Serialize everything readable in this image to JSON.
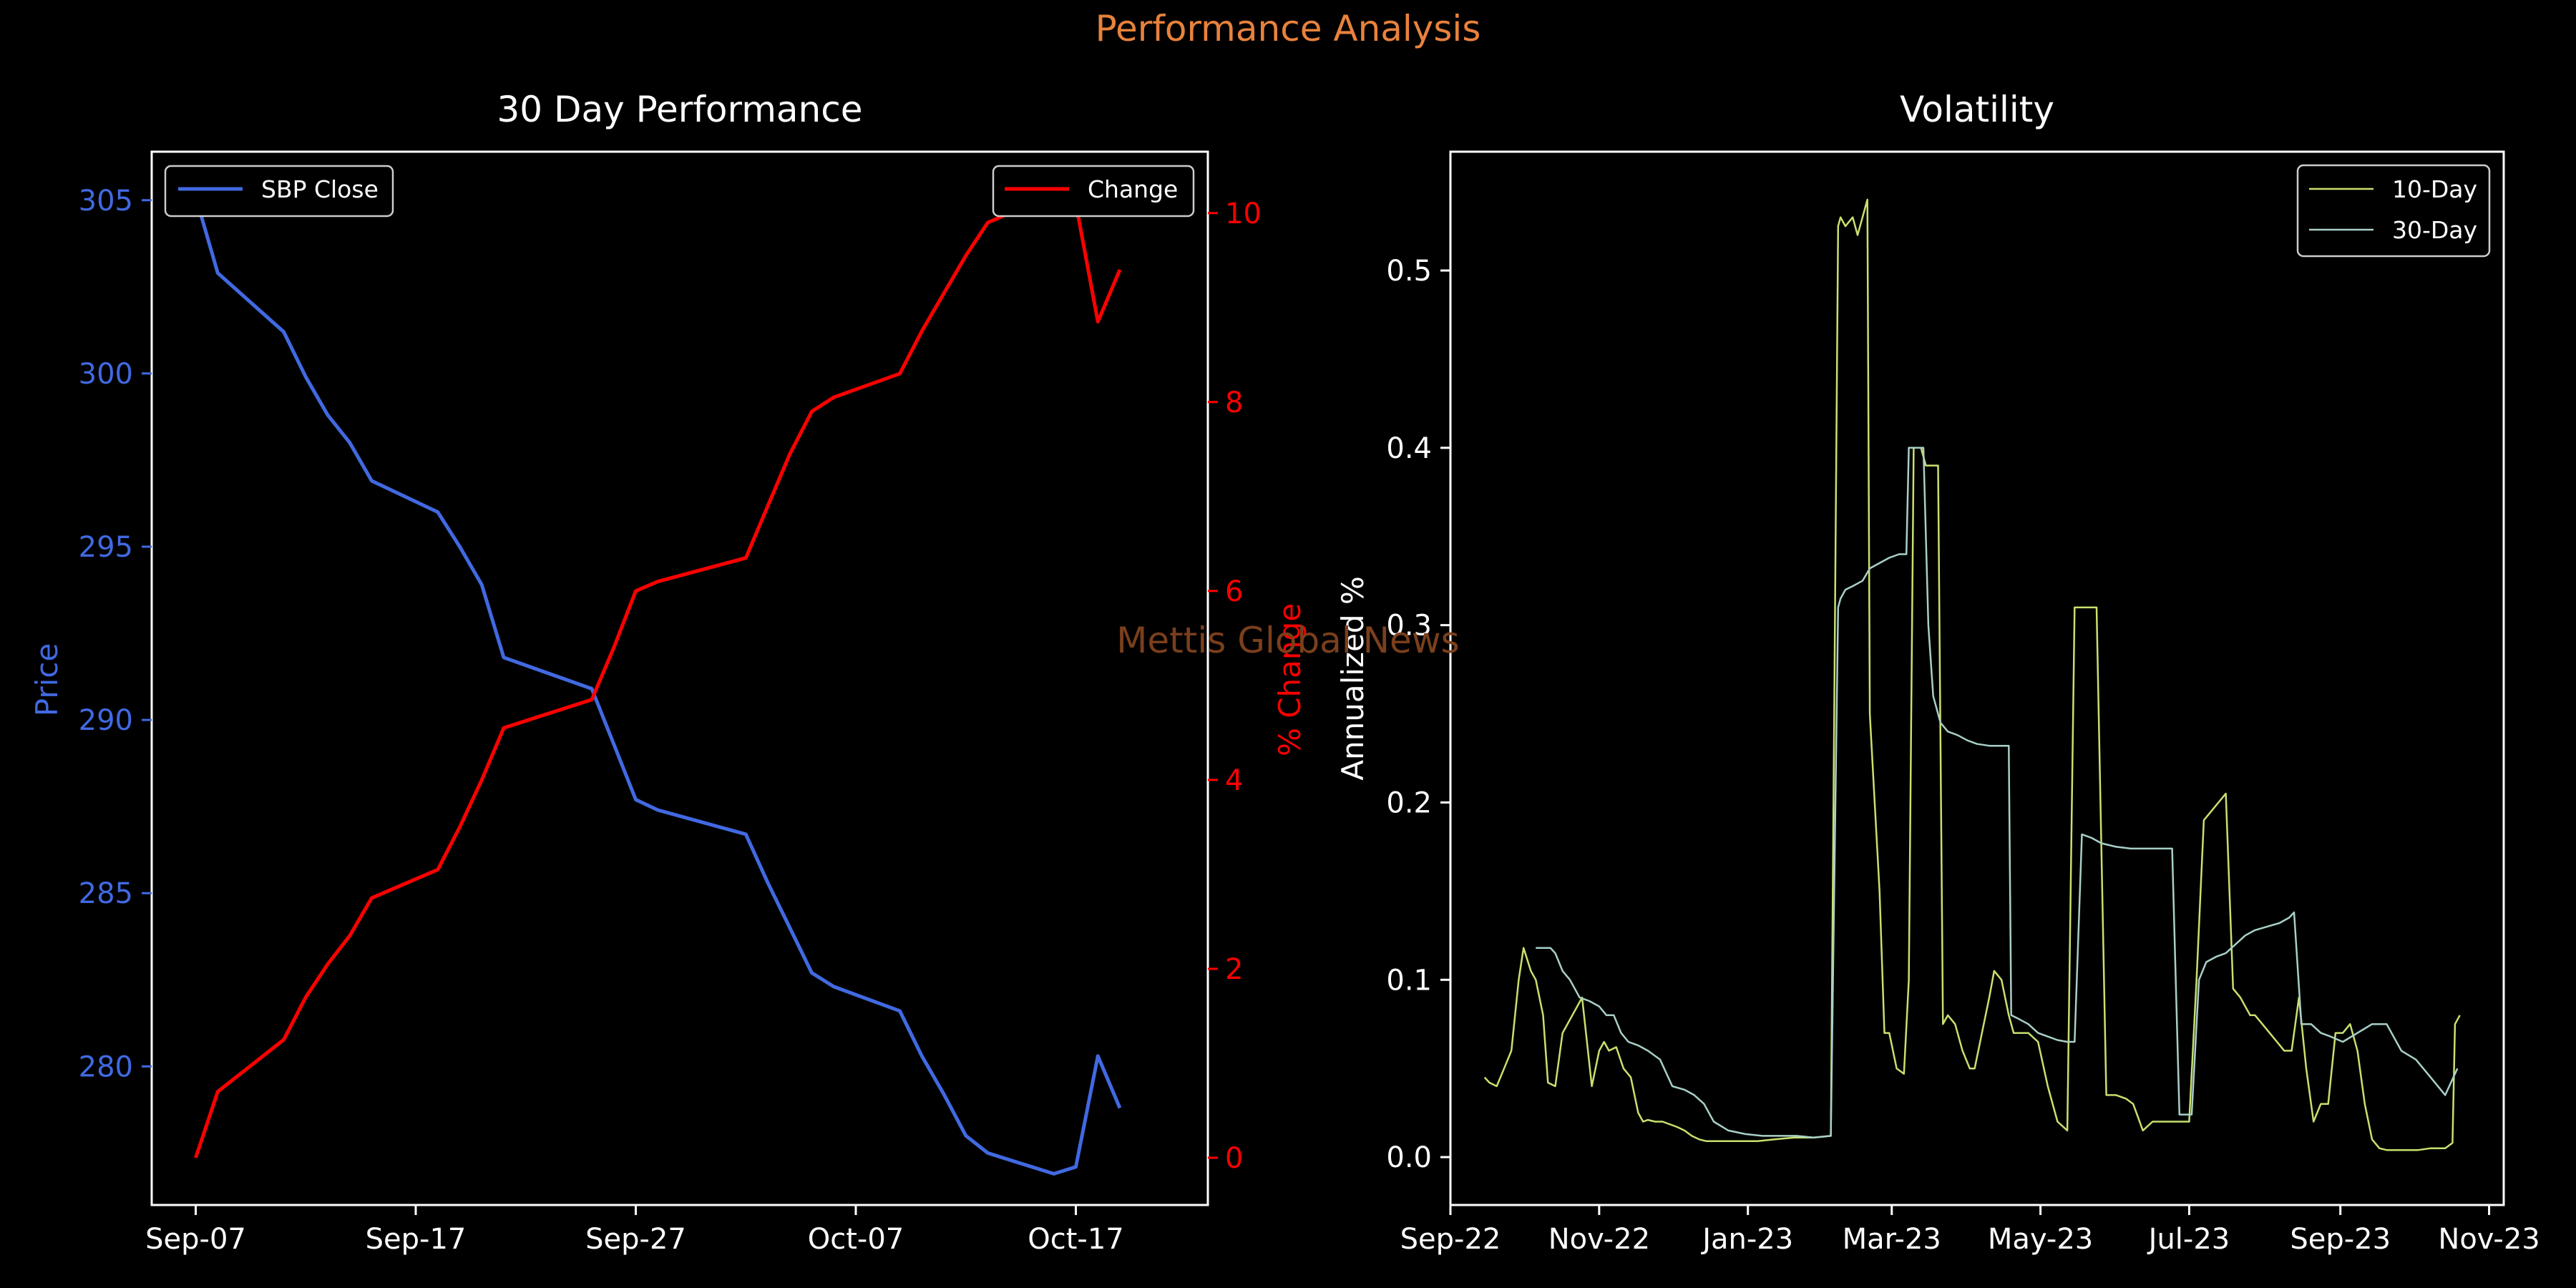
{
  "suptitle": "Performance Analysis",
  "watermark": "Mettis Global News",
  "colors": {
    "background": "#000000",
    "suptitle": "#e8823c",
    "price": "#4169e1",
    "change": "#ff0000",
    "vol10": "#c8e06e",
    "vol30": "#a8cfc8",
    "axes": "#ffffff",
    "watermark": "#7a3f1c"
  },
  "charts": {
    "left": {
      "title": "30 Day Performance",
      "ylabel_left": "Price",
      "ylabel_right": "% Change",
      "x_ticks": [
        "Sep-07",
        "Sep-17",
        "Sep-27",
        "Oct-07",
        "Oct-17"
      ],
      "y_ticks_left": [
        "280",
        "285",
        "290",
        "295",
        "300",
        "305"
      ],
      "y_ticks_right": [
        "0",
        "2",
        "4",
        "6",
        "8",
        "10"
      ],
      "legend_left": "SBP Close",
      "legend_right": "Change"
    },
    "right": {
      "title": "Volatility",
      "ylabel": "Annualized %",
      "x_ticks": [
        "Sep-22",
        "Nov-22",
        "Jan-23",
        "Mar-23",
        "May-23",
        "Jul-23",
        "Sep-23",
        "Nov-23"
      ],
      "y_ticks": [
        "0.0",
        "0.1",
        "0.2",
        "0.3",
        "0.4",
        "0.5"
      ],
      "legend": [
        "10-Day",
        "30-Day"
      ]
    }
  },
  "chart_data": [
    {
      "type": "line",
      "title": "30 Day Performance",
      "xlabel": "",
      "ylabel": "Price",
      "y2label": "% Change",
      "xlim": [
        "2023-09-05",
        "2023-10-23"
      ],
      "ylim": [
        276,
        306.4
      ],
      "y2lim": [
        -0.5,
        10.65
      ],
      "legend": [
        "top-left",
        "top-right"
      ],
      "series": [
        {
          "name": "SBP Close",
          "axis": "left",
          "x": [
            "2023-09-07",
            "2023-09-08",
            "2023-09-11",
            "2023-09-12",
            "2023-09-13",
            "2023-09-14",
            "2023-09-15",
            "2023-09-18",
            "2023-09-19",
            "2023-09-20",
            "2023-09-21",
            "2023-09-25",
            "2023-09-26",
            "2023-09-27",
            "2023-09-28",
            "2023-10-02",
            "2023-10-03",
            "2023-10-04",
            "2023-10-05",
            "2023-10-06",
            "2023-10-09",
            "2023-10-10",
            "2023-10-11",
            "2023-10-12",
            "2023-10-13",
            "2023-10-16",
            "2023-10-17",
            "2023-10-18",
            "2023-10-19"
          ],
          "values": [
            305.1,
            302.9,
            301.2,
            299.9,
            298.8,
            298.0,
            296.9,
            296.0,
            295.0,
            293.9,
            291.8,
            290.9,
            289.3,
            287.7,
            287.4,
            286.7,
            285.3,
            284.0,
            282.7,
            282.3,
            281.6,
            280.3,
            279.2,
            278.0,
            277.5,
            276.9,
            277.1,
            280.3,
            278.8
          ]
        },
        {
          "name": "Change",
          "axis": "right",
          "x": [
            "2023-09-07",
            "2023-09-08",
            "2023-09-11",
            "2023-09-12",
            "2023-09-13",
            "2023-09-14",
            "2023-09-15",
            "2023-09-18",
            "2023-09-19",
            "2023-09-20",
            "2023-09-21",
            "2023-09-25",
            "2023-09-26",
            "2023-09-27",
            "2023-09-28",
            "2023-10-02",
            "2023-10-03",
            "2023-10-04",
            "2023-10-05",
            "2023-10-06",
            "2023-10-09",
            "2023-10-10",
            "2023-10-11",
            "2023-10-12",
            "2023-10-13",
            "2023-10-16",
            "2023-10-17",
            "2023-10-18",
            "2023-10-19"
          ],
          "values": [
            0.0,
            0.7,
            1.25,
            1.7,
            2.05,
            2.35,
            2.75,
            3.05,
            3.5,
            4.0,
            4.55,
            4.85,
            5.4,
            6.0,
            6.1,
            6.35,
            6.9,
            7.45,
            7.9,
            8.05,
            8.3,
            8.75,
            9.15,
            9.55,
            9.9,
            10.2,
            10.1,
            8.85,
            9.4
          ]
        }
      ]
    },
    {
      "type": "line",
      "title": "Volatility",
      "xlabel": "",
      "ylabel": "Annualized %",
      "xlim": [
        "2022-09-01",
        "2023-11-07"
      ],
      "ylim": [
        -0.027,
        0.567
      ],
      "legend": "top-right",
      "series": [
        {
          "name": "10-Day",
          "x": [
            "2022-09-15",
            "2022-09-17",
            "2022-09-20",
            "2022-09-23",
            "2022-09-26",
            "2022-09-29",
            "2022-10-01",
            "2022-10-04",
            "2022-10-06",
            "2022-10-09",
            "2022-10-11",
            "2022-10-14",
            "2022-10-17",
            "2022-10-21",
            "2022-10-25",
            "2022-10-29",
            "2022-11-01",
            "2022-11-03",
            "2022-11-05",
            "2022-11-08",
            "2022-11-11",
            "2022-11-14",
            "2022-11-17",
            "2022-11-19",
            "2022-11-21",
            "2022-11-24",
            "2022-11-27",
            "2022-12-01",
            "2022-12-03",
            "2022-12-06",
            "2022-12-09",
            "2022-12-12",
            "2022-12-15",
            "2022-12-20",
            "2022-12-25",
            "2022-12-30",
            "2023-01-05",
            "2023-01-12",
            "2023-01-20",
            "2023-01-28",
            "2023-02-04",
            "2023-02-07",
            "2023-02-08",
            "2023-02-10",
            "2023-02-13",
            "2023-02-15",
            "2023-02-17",
            "2023-02-19",
            "2023-02-20",
            "2023-02-22",
            "2023-02-24",
            "2023-02-26",
            "2023-02-28",
            "2023-03-03",
            "2023-03-06",
            "2023-03-08",
            "2023-03-10",
            "2023-03-13",
            "2023-03-15",
            "2023-03-17",
            "2023-03-20",
            "2023-03-22",
            "2023-03-24",
            "2023-03-27",
            "2023-03-30",
            "2023-04-02",
            "2023-04-04",
            "2023-04-07",
            "2023-04-10",
            "2023-04-12",
            "2023-04-15",
            "2023-04-18",
            "2023-04-20",
            "2023-04-23",
            "2023-04-26",
            "2023-04-30",
            "2023-05-04",
            "2023-05-08",
            "2023-05-12",
            "2023-05-15",
            "2023-05-17",
            "2023-05-20",
            "2023-05-24",
            "2023-05-28",
            "2023-06-01",
            "2023-06-05",
            "2023-06-08",
            "2023-06-12",
            "2023-06-16",
            "2023-06-20",
            "2023-06-24",
            "2023-06-28",
            "2023-07-01",
            "2023-07-04",
            "2023-07-07",
            "2023-07-10",
            "2023-07-13",
            "2023-07-16",
            "2023-07-19",
            "2023-07-22",
            "2023-07-24",
            "2023-07-26",
            "2023-07-28",
            "2023-07-31",
            "2023-08-03",
            "2023-08-06",
            "2023-08-09",
            "2023-08-12",
            "2023-08-15",
            "2023-08-18",
            "2023-08-21",
            "2023-08-24",
            "2023-08-27",
            "2023-08-30",
            "2023-09-02",
            "2023-09-05",
            "2023-09-08",
            "2023-09-11",
            "2023-09-14",
            "2023-09-17",
            "2023-09-20",
            "2023-09-24",
            "2023-09-28",
            "2023-10-03",
            "2023-10-08",
            "2023-10-14",
            "2023-10-17",
            "2023-10-18",
            "2023-10-20"
          ],
          "values": [
            0.045,
            0.042,
            0.04,
            0.05,
            0.06,
            0.1,
            0.118,
            0.105,
            0.1,
            0.08,
            0.042,
            0.04,
            0.07,
            0.08,
            0.09,
            0.04,
            0.06,
            0.065,
            0.06,
            0.062,
            0.05,
            0.045,
            0.025,
            0.02,
            0.021,
            0.02,
            0.02,
            0.018,
            0.017,
            0.015,
            0.012,
            0.01,
            0.009,
            0.009,
            0.009,
            0.009,
            0.009,
            0.01,
            0.011,
            0.011,
            0.012,
            0.525,
            0.53,
            0.525,
            0.53,
            0.52,
            0.53,
            0.54,
            0.25,
            0.2,
            0.15,
            0.07,
            0.07,
            0.05,
            0.047,
            0.1,
            0.4,
            0.4,
            0.39,
            0.39,
            0.39,
            0.075,
            0.08,
            0.075,
            0.06,
            0.05,
            0.05,
            0.07,
            0.09,
            0.105,
            0.1,
            0.08,
            0.07,
            0.07,
            0.07,
            0.065,
            0.04,
            0.02,
            0.015,
            0.31,
            0.31,
            0.31,
            0.31,
            0.035,
            0.035,
            0.033,
            0.03,
            0.015,
            0.02,
            0.02,
            0.02,
            0.02,
            0.02,
            0.1,
            0.19,
            0.195,
            0.2,
            0.205,
            0.095,
            0.09,
            0.085,
            0.08,
            0.08,
            0.075,
            0.07,
            0.065,
            0.06,
            0.06,
            0.09,
            0.05,
            0.02,
            0.03,
            0.03,
            0.07,
            0.07,
            0.075,
            0.06,
            0.03,
            0.01,
            0.005,
            0.004,
            0.004,
            0.004,
            0.004,
            0.005,
            0.005,
            0.008,
            0.075,
            0.08
          ]
        },
        {
          "name": "30-Day",
          "x": [
            "2022-10-06",
            "2022-10-09",
            "2022-10-12",
            "2022-10-14",
            "2022-10-17",
            "2022-10-20",
            "2022-10-24",
            "2022-10-28",
            "2022-11-01",
            "2022-11-04",
            "2022-11-07",
            "2022-11-10",
            "2022-11-13",
            "2022-11-17",
            "2022-11-21",
            "2022-11-26",
            "2022-12-01",
            "2022-12-06",
            "2022-12-10",
            "2022-12-14",
            "2022-12-18",
            "2022-12-24",
            "2022-12-31",
            "2023-01-07",
            "2023-01-14",
            "2023-01-21",
            "2023-01-28",
            "2023-02-04",
            "2023-02-07",
            "2023-02-08",
            "2023-02-10",
            "2023-02-13",
            "2023-02-17",
            "2023-02-20",
            "2023-02-24",
            "2023-02-28",
            "2023-03-04",
            "2023-03-07",
            "2023-03-08",
            "2023-03-11",
            "2023-03-14",
            "2023-03-16",
            "2023-03-18",
            "2023-03-21",
            "2023-03-24",
            "2023-03-28",
            "2023-04-01",
            "2023-04-05",
            "2023-04-10",
            "2023-04-14",
            "2023-04-18",
            "2023-04-19",
            "2023-04-22",
            "2023-04-26",
            "2023-04-30",
            "2023-05-04",
            "2023-05-08",
            "2023-05-12",
            "2023-05-15",
            "2023-05-18",
            "2023-05-22",
            "2023-05-26",
            "2023-06-01",
            "2023-06-07",
            "2023-06-13",
            "2023-06-19",
            "2023-06-24",
            "2023-06-27",
            "2023-07-02",
            "2023-07-05",
            "2023-07-08",
            "2023-07-12",
            "2023-07-16",
            "2023-07-20",
            "2023-07-24",
            "2023-07-28",
            "2023-08-02",
            "2023-08-07",
            "2023-08-11",
            "2023-08-13",
            "2023-08-16",
            "2023-08-20",
            "2023-08-24",
            "2023-08-28",
            "2023-09-02",
            "2023-09-08",
            "2023-09-14",
            "2023-09-20",
            "2023-09-26",
            "2023-10-02",
            "2023-10-08",
            "2023-10-14",
            "2023-10-19"
          ],
          "values": [
            0.118,
            0.118,
            0.118,
            0.115,
            0.105,
            0.1,
            0.09,
            0.088,
            0.085,
            0.08,
            0.08,
            0.07,
            0.065,
            0.063,
            0.06,
            0.055,
            0.04,
            0.038,
            0.035,
            0.03,
            0.02,
            0.015,
            0.013,
            0.012,
            0.012,
            0.012,
            0.011,
            0.012,
            0.31,
            0.315,
            0.32,
            0.322,
            0.325,
            0.332,
            0.335,
            0.338,
            0.34,
            0.34,
            0.4,
            0.4,
            0.4,
            0.3,
            0.26,
            0.245,
            0.24,
            0.238,
            0.235,
            0.233,
            0.232,
            0.232,
            0.232,
            0.08,
            0.078,
            0.075,
            0.07,
            0.068,
            0.066,
            0.065,
            0.065,
            0.182,
            0.18,
            0.177,
            0.175,
            0.174,
            0.174,
            0.174,
            0.174,
            0.024,
            0.024,
            0.1,
            0.11,
            0.113,
            0.115,
            0.12,
            0.125,
            0.128,
            0.13,
            0.132,
            0.135,
            0.138,
            0.075,
            0.075,
            0.07,
            0.068,
            0.065,
            0.07,
            0.075,
            0.075,
            0.06,
            0.055,
            0.045,
            0.035,
            0.05
          ]
        }
      ]
    }
  ]
}
